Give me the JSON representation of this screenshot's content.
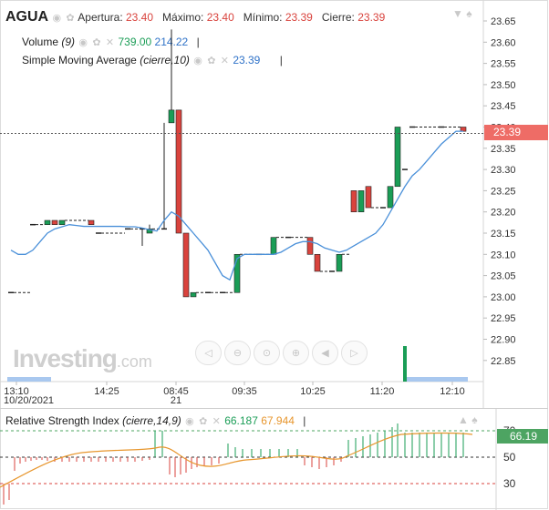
{
  "header": {
    "symbol": "AGUA",
    "open_label": "Apertura:",
    "open_value": "23.40",
    "high_label": "Máximo:",
    "high_value": "23.40",
    "low_label": "Mínimo:",
    "low_value": "23.39",
    "close_label": "Cierre:",
    "close_value": "23.39"
  },
  "volume_legend": {
    "label": "Volume",
    "param": "(9)",
    "value1": "739.00",
    "value2": "214.22"
  },
  "sma_legend": {
    "label": "Simple Moving Average",
    "param": "(cierre,10)",
    "value": "23.39"
  },
  "rsi_legend": {
    "label": "Relative Strength Index",
    "param": "(cierre,14,9)",
    "value1": "66.187",
    "value2": "67.944"
  },
  "price_tag": "23.39",
  "rsi_tag": "66.19",
  "logo": {
    "brand": "Investing",
    "suffix": ".com"
  },
  "icons": [
    "eye-icon",
    "settings-icon",
    "close-icon",
    "down-arrow-icon",
    "spade-icon"
  ],
  "nav_buttons": [
    "scroll-left-icon",
    "zoom-out-icon",
    "zoom-reset-icon",
    "zoom-in-icon",
    "pan-left-icon",
    "pan-right-icon"
  ],
  "colors": {
    "up": "#1a9d56",
    "down": "#d9433d",
    "sma": "#4a90d9",
    "rsi": "#e7962d",
    "volume": "#a9c8ef"
  },
  "chart_data": {
    "type": "candlestick",
    "y_ticks": [
      "23.65",
      "23.60",
      "23.55",
      "23.50",
      "23.45",
      "23.40",
      "23.35",
      "23.30",
      "23.25",
      "23.20",
      "23.15",
      "23.10",
      "23.05",
      "23.00",
      "22.95",
      "22.90",
      "22.85"
    ],
    "x_ticks": [
      "13:10",
      "14:25",
      "08:45",
      "09:35",
      "10:25",
      "11:20",
      "12:10"
    ],
    "x_subticks": [
      "10/20/2021",
      "",
      "21",
      "",
      "",
      "",
      ""
    ],
    "candles": [
      {
        "t": 0,
        "o": 23.01,
        "h": 23.01,
        "l": 23.01,
        "c": 23.01
      },
      {
        "t": 3,
        "o": 23.17,
        "h": 23.17,
        "l": 23.17,
        "c": 23.17
      },
      {
        "t": 5,
        "o": 23.17,
        "h": 23.18,
        "l": 23.17,
        "c": 23.18
      },
      {
        "t": 6,
        "o": 23.18,
        "h": 23.18,
        "l": 23.17,
        "c": 23.17
      },
      {
        "t": 7,
        "o": 23.17,
        "h": 23.18,
        "l": 23.17,
        "c": 23.18
      },
      {
        "t": 11,
        "o": 23.18,
        "h": 23.18,
        "l": 23.17,
        "c": 23.17
      },
      {
        "t": 12,
        "o": 23.15,
        "h": 23.15,
        "l": 23.15,
        "c": 23.15
      },
      {
        "t": 16,
        "o": 23.16,
        "h": 23.16,
        "l": 23.16,
        "c": 23.16
      },
      {
        "t": 18,
        "o": 23.16,
        "h": 23.16,
        "l": 23.12,
        "c": 23.16
      },
      {
        "t": 19,
        "o": 23.15,
        "h": 23.17,
        "l": 23.15,
        "c": 23.16
      },
      {
        "t": 21,
        "o": 23.16,
        "h": 23.41,
        "l": 23.16,
        "c": 23.16
      },
      {
        "t": 22,
        "o": 23.41,
        "h": 23.63,
        "l": 23.41,
        "c": 23.44
      },
      {
        "t": 23,
        "o": 23.44,
        "h": 23.44,
        "l": 23.15,
        "c": 23.15
      },
      {
        "t": 24,
        "o": 23.15,
        "h": 23.15,
        "l": 23.0,
        "c": 23.0
      },
      {
        "t": 25,
        "o": 23.0,
        "h": 23.01,
        "l": 23.0,
        "c": 23.01
      },
      {
        "t": 27,
        "o": 23.01,
        "h": 23.01,
        "l": 23.01,
        "c": 23.01
      },
      {
        "t": 29,
        "o": 23.01,
        "h": 23.01,
        "l": 23.01,
        "c": 23.01
      },
      {
        "t": 31,
        "o": 23.01,
        "h": 23.1,
        "l": 23.01,
        "c": 23.1
      },
      {
        "t": 34,
        "o": 23.1,
        "h": 23.1,
        "l": 23.1,
        "c": 23.1
      },
      {
        "t": 36,
        "o": 23.1,
        "h": 23.14,
        "l": 23.1,
        "c": 23.14
      },
      {
        "t": 38,
        "o": 23.14,
        "h": 23.14,
        "l": 23.14,
        "c": 23.14
      },
      {
        "t": 41,
        "o": 23.14,
        "h": 23.14,
        "l": 23.1,
        "c": 23.1
      },
      {
        "t": 42,
        "o": 23.1,
        "h": 23.1,
        "l": 23.06,
        "c": 23.06
      },
      {
        "t": 44,
        "o": 23.06,
        "h": 23.06,
        "l": 23.06,
        "c": 23.06
      },
      {
        "t": 45,
        "o": 23.06,
        "h": 23.1,
        "l": 23.06,
        "c": 23.1
      },
      {
        "t": 47,
        "o": 23.25,
        "h": 23.25,
        "l": 23.2,
        "c": 23.2
      },
      {
        "t": 48,
        "o": 23.2,
        "h": 23.25,
        "l": 23.2,
        "c": 23.25
      },
      {
        "t": 49,
        "o": 23.26,
        "h": 23.26,
        "l": 23.21,
        "c": 23.21
      },
      {
        "t": 51,
        "o": 23.21,
        "h": 23.21,
        "l": 23.21,
        "c": 23.21
      },
      {
        "t": 52,
        "o": 23.21,
        "h": 23.26,
        "l": 23.21,
        "c": 23.26
      },
      {
        "t": 53,
        "o": 23.26,
        "h": 23.4,
        "l": 23.26,
        "c": 23.4
      },
      {
        "t": 54,
        "o": 23.3,
        "h": 23.3,
        "l": 23.3,
        "c": 23.3
      },
      {
        "t": 55,
        "o": 23.4,
        "h": 23.4,
        "l": 23.4,
        "c": 23.4
      },
      {
        "t": 59,
        "o": 23.4,
        "h": 23.4,
        "l": 23.4,
        "c": 23.4
      },
      {
        "t": 62,
        "o": 23.4,
        "h": 23.4,
        "l": 23.39,
        "c": 23.39
      }
    ],
    "sma": [
      [
        0,
        23.11
      ],
      [
        1,
        23.1
      ],
      [
        2,
        23.1
      ],
      [
        3,
        23.11
      ],
      [
        4,
        23.13
      ],
      [
        5,
        23.15
      ],
      [
        6,
        23.16
      ],
      [
        7,
        23.165
      ],
      [
        8,
        23.17
      ],
      [
        9,
        23.168
      ],
      [
        10,
        23.166
      ],
      [
        11,
        23.166
      ],
      [
        12,
        23.166
      ],
      [
        13,
        23.166
      ],
      [
        14,
        23.166
      ],
      [
        15,
        23.166
      ],
      [
        16,
        23.165
      ],
      [
        17,
        23.165
      ],
      [
        18,
        23.162
      ],
      [
        19,
        23.158
      ],
      [
        20,
        23.155
      ],
      [
        21,
        23.18
      ],
      [
        22,
        23.2
      ],
      [
        23,
        23.19
      ],
      [
        24,
        23.17
      ],
      [
        25,
        23.15
      ],
      [
        26,
        23.13
      ],
      [
        27,
        23.11
      ],
      [
        28,
        23.08
      ],
      [
        29,
        23.05
      ],
      [
        30,
        23.04
      ],
      [
        31,
        23.09
      ],
      [
        32,
        23.1
      ],
      [
        33,
        23.1
      ],
      [
        34,
        23.1
      ],
      [
        35,
        23.1
      ],
      [
        36,
        23.1
      ],
      [
        37,
        23.105
      ],
      [
        38,
        23.115
      ],
      [
        39,
        23.125
      ],
      [
        40,
        23.13
      ],
      [
        41,
        23.13
      ],
      [
        42,
        23.125
      ],
      [
        43,
        23.115
      ],
      [
        44,
        23.11
      ],
      [
        45,
        23.105
      ],
      [
        46,
        23.11
      ],
      [
        47,
        23.12
      ],
      [
        48,
        23.13
      ],
      [
        49,
        23.14
      ],
      [
        50,
        23.15
      ],
      [
        51,
        23.17
      ],
      [
        52,
        23.2
      ],
      [
        53,
        23.23
      ],
      [
        54,
        23.26
      ],
      [
        55,
        23.285
      ],
      [
        56,
        23.3
      ],
      [
        57,
        23.32
      ],
      [
        58,
        23.34
      ],
      [
        59,
        23.36
      ],
      [
        60,
        23.375
      ],
      [
        61,
        23.39
      ],
      [
        62,
        23.39
      ]
    ],
    "volume_spike": {
      "t": 54,
      "v": 739
    }
  }
}
